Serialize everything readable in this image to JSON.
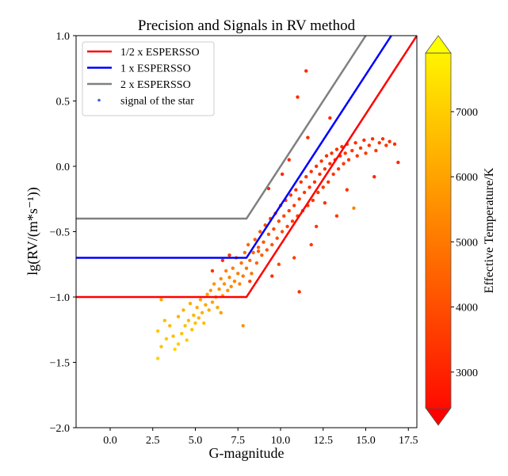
{
  "chart_data": {
    "type": "scatter",
    "title": "Precision and Signals in RV method",
    "xlabel": "G-magnitude",
    "ylabel": "lg(RV/(m*s⁻¹))",
    "xlim": [
      -2,
      18
    ],
    "ylim": [
      -2,
      1
    ],
    "xticks": [
      0.0,
      2.5,
      5.0,
      7.5,
      10.0,
      12.5,
      15.0,
      17.5
    ],
    "xtick_labels": [
      "0.0",
      "2.5",
      "5.0",
      "7.5",
      "10.0",
      "12.5",
      "15.0",
      "17.5"
    ],
    "yticks": [
      1.0,
      0.5,
      0.0,
      -0.5,
      -1.0,
      -1.5,
      -2.0
    ],
    "ytick_labels": [
      "1.0",
      "0.5",
      "0.0",
      "−0.5",
      "−1.0",
      "−1.5",
      "−2.0"
    ],
    "grid": false,
    "legend_position": "top-left",
    "lines": [
      {
        "name": "1/2 x ESPERSSO",
        "color": "#ff0000",
        "x": [
          -2,
          8,
          18
        ],
        "y": [
          -1.0,
          -1.0,
          1.0
        ]
      },
      {
        "name": "1 x ESPERSSO",
        "color": "#0000ff",
        "x": [
          -2,
          8,
          16.5
        ],
        "y": [
          -0.7,
          -0.7,
          1.0
        ]
      },
      {
        "name": "2 x ESPERSSO",
        "color": "#808080",
        "x": [
          -2,
          8,
          15
        ],
        "y": [
          -0.4,
          -0.4,
          1.0
        ]
      }
    ],
    "scatter": {
      "name": "signal of the star",
      "legend_marker_color": "#3f5fdf",
      "columns": [
        "G",
        "lgRV",
        "Teff"
      ],
      "points": [
        [
          2.8,
          -1.47,
          6900
        ],
        [
          2.8,
          -1.26,
          6700
        ],
        [
          3.0,
          -1.38,
          6600
        ],
        [
          3.2,
          -1.18,
          6500
        ],
        [
          3.3,
          -1.32,
          6700
        ],
        [
          3.5,
          -1.22,
          6400
        ],
        [
          3.7,
          -1.3,
          6500
        ],
        [
          3.8,
          -1.4,
          7000
        ],
        [
          4.0,
          -1.36,
          6800
        ],
        [
          4.0,
          -1.15,
          6300
        ],
        [
          4.2,
          -1.28,
          6600
        ],
        [
          4.3,
          -1.1,
          6200
        ],
        [
          4.4,
          -1.22,
          6500
        ],
        [
          4.5,
          -1.33,
          6800
        ],
        [
          4.6,
          -1.18,
          6400
        ],
        [
          4.7,
          -1.05,
          6100
        ],
        [
          4.8,
          -1.25,
          6600
        ],
        [
          4.9,
          -1.14,
          6300
        ],
        [
          5.0,
          -1.2,
          6500
        ],
        [
          5.1,
          -1.08,
          6100
        ],
        [
          5.2,
          -1.16,
          6300
        ],
        [
          5.3,
          -1.02,
          6000
        ],
        [
          5.4,
          -1.12,
          6200
        ],
        [
          5.5,
          -1.2,
          6500
        ],
        [
          5.6,
          -1.06,
          6000
        ],
        [
          5.7,
          -0.98,
          5800
        ],
        [
          5.8,
          -1.1,
          6100
        ],
        [
          5.9,
          -0.95,
          5700
        ],
        [
          6.0,
          -1.04,
          5900
        ],
        [
          6.1,
          -0.9,
          5600
        ],
        [
          6.2,
          -1.0,
          5800
        ],
        [
          6.3,
          -1.08,
          6000
        ],
        [
          6.4,
          -0.94,
          5600
        ],
        [
          6.5,
          -0.86,
          5400
        ],
        [
          6.6,
          -0.99,
          5700
        ],
        [
          6.7,
          -0.9,
          5500
        ],
        [
          6.8,
          -0.8,
          5200
        ],
        [
          6.9,
          -0.95,
          5600
        ],
        [
          7.0,
          -0.85,
          5300
        ],
        [
          7.1,
          -0.92,
          5400
        ],
        [
          7.2,
          -0.78,
          5100
        ],
        [
          7.3,
          -0.88,
          5300
        ],
        [
          7.4,
          -0.7,
          4900
        ],
        [
          7.5,
          -0.82,
          5100
        ],
        [
          7.6,
          -0.9,
          5300
        ],
        [
          7.7,
          -0.74,
          4800
        ],
        [
          7.8,
          -0.84,
          5000
        ],
        [
          7.9,
          -0.66,
          4700
        ],
        [
          8.0,
          -0.78,
          4900
        ],
        [
          8.1,
          -0.6,
          4600
        ],
        [
          8.2,
          -0.72,
          4700
        ],
        [
          8.3,
          -0.82,
          4900
        ],
        [
          8.4,
          -0.66,
          4500
        ],
        [
          8.5,
          -0.56,
          4400
        ],
        [
          8.6,
          -0.74,
          4600
        ],
        [
          8.7,
          -0.62,
          4400
        ],
        [
          8.8,
          -0.5,
          4200
        ],
        [
          8.9,
          -0.68,
          4500
        ],
        [
          9.0,
          -0.58,
          4300
        ],
        [
          9.1,
          -0.45,
          4100
        ],
        [
          9.2,
          -0.64,
          4300
        ],
        [
          9.3,
          -0.52,
          4100
        ],
        [
          9.4,
          -0.4,
          4000
        ],
        [
          9.5,
          -0.6,
          4200
        ],
        [
          9.6,
          -0.48,
          4000
        ],
        [
          9.7,
          -0.36,
          3900
        ],
        [
          9.8,
          -0.55,
          4100
        ],
        [
          9.9,
          -0.42,
          3900
        ],
        [
          10.0,
          -0.3,
          3800
        ],
        [
          10.1,
          -0.5,
          4000
        ],
        [
          10.2,
          -0.38,
          3900
        ],
        [
          10.3,
          -0.26,
          3700
        ],
        [
          10.4,
          -0.46,
          3900
        ],
        [
          10.5,
          -0.34,
          3800
        ],
        [
          10.6,
          -0.22,
          3600
        ],
        [
          10.7,
          -0.42,
          3800
        ],
        [
          10.8,
          -0.3,
          3700
        ],
        [
          10.9,
          -0.18,
          3500
        ],
        [
          11.0,
          -0.38,
          3800
        ],
        [
          11.1,
          -0.25,
          3600
        ],
        [
          11.2,
          -0.12,
          3500
        ],
        [
          11.3,
          -0.34,
          3700
        ],
        [
          11.4,
          -0.2,
          3600
        ],
        [
          11.5,
          -0.08,
          3500
        ],
        [
          11.6,
          -0.3,
          3700
        ],
        [
          11.7,
          -0.16,
          3500
        ],
        [
          11.8,
          -0.04,
          3400
        ],
        [
          11.9,
          -0.26,
          3600
        ],
        [
          12.0,
          -0.12,
          3500
        ],
        [
          12.1,
          0.0,
          3400
        ],
        [
          12.2,
          -0.2,
          3600
        ],
        [
          12.3,
          -0.06,
          3500
        ],
        [
          12.4,
          0.04,
          3400
        ],
        [
          12.5,
          -0.16,
          3600
        ],
        [
          12.6,
          -0.02,
          3500
        ],
        [
          12.7,
          0.08,
          3400
        ],
        [
          12.8,
          -0.12,
          3600
        ],
        [
          12.9,
          0.02,
          3500
        ],
        [
          13.0,
          0.1,
          3400
        ],
        [
          13.1,
          -0.06,
          3600
        ],
        [
          13.2,
          0.05,
          3500
        ],
        [
          13.3,
          0.13,
          3400
        ],
        [
          13.4,
          -0.02,
          3600
        ],
        [
          13.5,
          0.08,
          3500
        ],
        [
          13.6,
          0.15,
          3400
        ],
        [
          13.7,
          0.02,
          3600
        ],
        [
          13.8,
          0.1,
          3500
        ],
        [
          13.9,
          0.17,
          3400
        ],
        [
          14.0,
          0.05,
          3600
        ],
        [
          14.2,
          0.12,
          3500
        ],
        [
          14.4,
          0.18,
          3400
        ],
        [
          14.5,
          0.08,
          3600
        ],
        [
          14.7,
          0.14,
          3500
        ],
        [
          14.9,
          0.2,
          3400
        ],
        [
          15.0,
          0.1,
          3600
        ],
        [
          15.2,
          0.16,
          3500
        ],
        [
          15.4,
          0.21,
          3400
        ],
        [
          15.6,
          0.12,
          3600
        ],
        [
          15.8,
          0.18,
          3500
        ],
        [
          16.0,
          0.21,
          3400
        ],
        [
          16.2,
          0.16,
          3500
        ],
        [
          16.4,
          0.19,
          3400
        ],
        [
          16.7,
          0.17,
          3400
        ],
        [
          16.9,
          0.03,
          3300
        ],
        [
          14.3,
          -0.32,
          5200
        ],
        [
          15.5,
          -0.08,
          3300
        ],
        [
          11.1,
          -0.96,
          3400
        ],
        [
          7.8,
          -1.22,
          5600
        ],
        [
          6.5,
          -1.12,
          5800
        ],
        [
          6.0,
          -0.8,
          3500
        ],
        [
          9.3,
          -0.17,
          3300
        ],
        [
          10.1,
          -0.06,
          3300
        ],
        [
          10.5,
          0.05,
          3300
        ],
        [
          11.6,
          0.22,
          3300
        ],
        [
          12.9,
          0.37,
          3300
        ],
        [
          11.0,
          0.53,
          3300
        ],
        [
          11.5,
          0.73,
          3300
        ],
        [
          8.7,
          -0.65,
          4200
        ],
        [
          9.5,
          -0.84,
          3500
        ],
        [
          10.8,
          -0.7,
          3800
        ],
        [
          12.1,
          -0.46,
          3700
        ],
        [
          13.3,
          -0.38,
          3700
        ],
        [
          12.6,
          -0.28,
          3500
        ],
        [
          13.9,
          -0.18,
          3500
        ],
        [
          8.2,
          -0.88,
          4000
        ],
        [
          7.0,
          -0.68,
          3600
        ],
        [
          6.6,
          -0.72,
          3500
        ],
        [
          9.9,
          -0.75,
          4000
        ],
        [
          11.8,
          -0.6,
          3700
        ],
        [
          3.0,
          -1.02,
          6000
        ]
      ]
    },
    "colorbar": {
      "label": "Effective Temperature/K",
      "colormap": "autumn",
      "color_low": "#ff0000",
      "color_high": "#ffff00",
      "vmin": 2450,
      "vmax": 7900,
      "extend": "both",
      "ticks": [
        3000,
        4000,
        5000,
        6000,
        7000
      ],
      "tick_labels": [
        "3000",
        "4000",
        "5000",
        "6000",
        "7000"
      ]
    }
  }
}
